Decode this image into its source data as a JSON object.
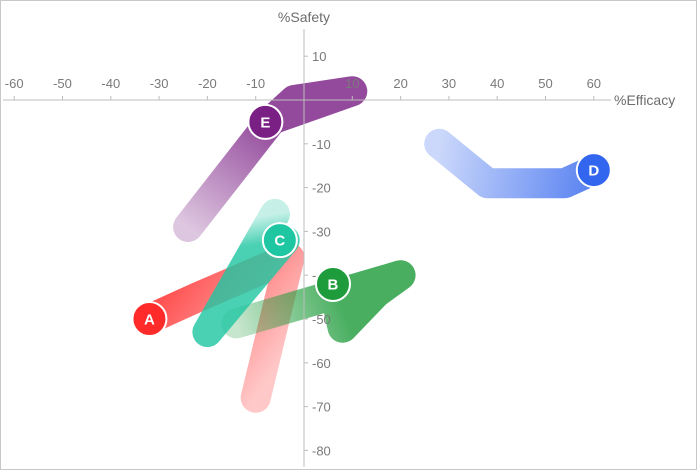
{
  "chart_data": {
    "type": "line",
    "xlabel": "%Efficacy",
    "ylabel": "%Safety",
    "xlim": [
      -65,
      68
    ],
    "ylim": [
      -86,
      19
    ],
    "x_ticks": [
      -60,
      -50,
      -40,
      -30,
      -20,
      -10,
      10,
      20,
      30,
      40,
      50,
      60
    ],
    "y_ticks": [
      10,
      -10,
      -20,
      -30,
      -40,
      -50,
      -60,
      -70,
      -80
    ],
    "grid": false,
    "legend": "none",
    "series": [
      {
        "name": "A",
        "color": "#ff2a2a",
        "points": [
          [
            -10,
            -68
          ],
          [
            -3,
            -36
          ],
          [
            -22,
            -45
          ],
          [
            -32,
            -50
          ]
        ]
      },
      {
        "name": "B",
        "color": "#1e9b3a",
        "points": [
          [
            -14,
            -51
          ],
          [
            20,
            -40
          ],
          [
            15,
            -44
          ],
          [
            8,
            -52
          ],
          [
            6,
            -42
          ]
        ]
      },
      {
        "name": "C",
        "color": "#1fc6a2",
        "points": [
          [
            -6,
            -26
          ],
          [
            -20,
            -53
          ],
          [
            -4,
            -32
          ],
          [
            -5,
            -32
          ]
        ]
      },
      {
        "name": "D",
        "color": "#3366ee",
        "points": [
          [
            28,
            -10
          ],
          [
            38,
            -19
          ],
          [
            54,
            -19
          ],
          [
            60,
            -16
          ]
        ]
      },
      {
        "name": "E",
        "color": "#7a1f84",
        "points": [
          [
            -24,
            -29
          ],
          [
            -7,
            -5
          ],
          [
            -2,
            0
          ],
          [
            10,
            2
          ],
          [
            -8,
            -5
          ]
        ]
      }
    ]
  }
}
